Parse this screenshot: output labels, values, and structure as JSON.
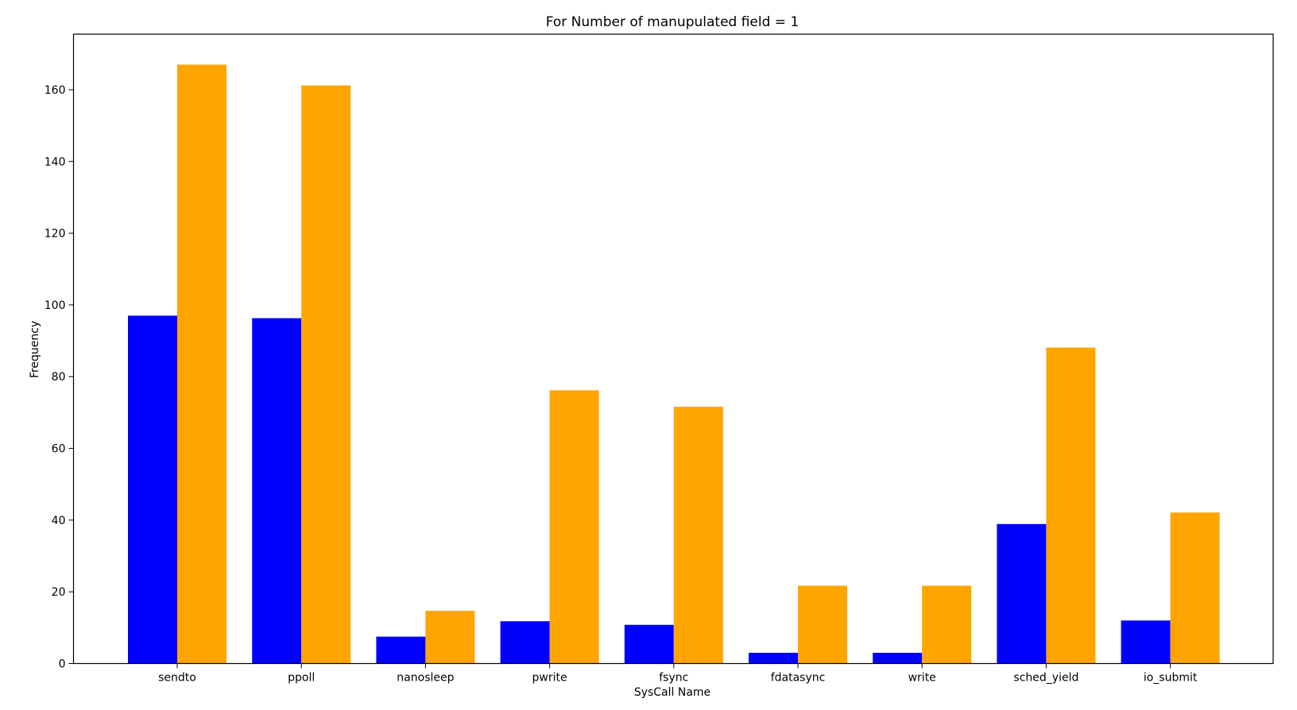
{
  "chart_data": {
    "type": "bar",
    "title": "For Number of manupulated field = 1",
    "xlabel": "SysCall Name",
    "ylabel": "Frequency",
    "categories": [
      "sendto",
      "ppoll",
      "nanosleep",
      "pwrite",
      "fsync",
      "fdatasync",
      "write",
      "sched_yield",
      "io_submit"
    ],
    "series": [
      {
        "color": "#0000ff",
        "values": [
          97,
          96.3,
          7.5,
          11.8,
          10.8,
          3,
          3,
          38.9,
          12
        ]
      },
      {
        "color": "#ffa500",
        "values": [
          167,
          161.2,
          14.7,
          76.2,
          71.6,
          21.7,
          21.7,
          88.1,
          42.1
        ]
      }
    ],
    "ylim": [
      0,
      175.5
    ],
    "yticks": [
      0,
      20,
      40,
      60,
      80,
      100,
      120,
      140,
      160
    ],
    "grid": false,
    "legend": "none"
  }
}
